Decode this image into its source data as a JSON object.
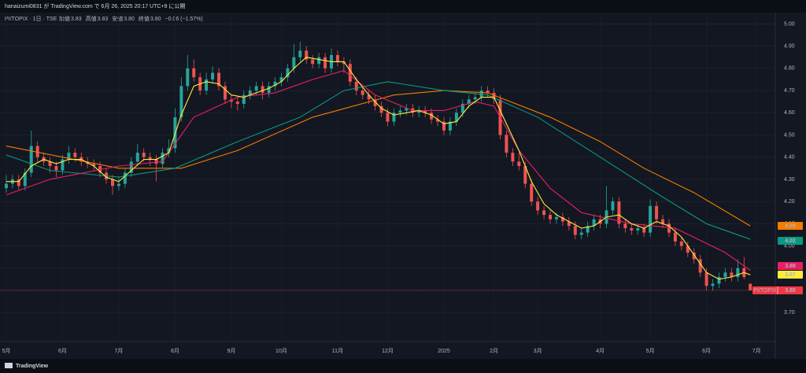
{
  "header": {
    "published": "hanaizumi0831 が TradingView.com で 6月 26, 2025 20:17 UTC+9 に公開"
  },
  "footer": {
    "brand": "TradingView"
  },
  "chart_data": {
    "type": "candlestick",
    "symbol": "PI/TOPIX · 1日 · TSE",
    "ohlc_header": [
      {
        "label": "始値",
        "value": "3.83"
      },
      {
        "label": "高値",
        "value": "3.83"
      },
      {
        "label": "安値",
        "value": "3.80"
      },
      {
        "label": "終値",
        "value": "3.80"
      }
    ],
    "change": "−0.06 (−1.57%)",
    "price_badge": {
      "name": "PI/TOPIX",
      "label": "3.80",
      "value": 3.8,
      "color": "#f23645"
    },
    "up_color": "#26a69a",
    "down_color": "#ef5350",
    "xlim": [
      -1,
      123
    ],
    "xticks": [
      {
        "value": 0,
        "label": "5月"
      },
      {
        "value": 9,
        "label": "6月"
      },
      {
        "value": 18,
        "label": "7月"
      },
      {
        "value": 27,
        "label": "8月"
      },
      {
        "value": 36,
        "label": "9月"
      },
      {
        "value": 44,
        "label": "10月"
      },
      {
        "value": 53,
        "label": "11月"
      },
      {
        "value": 61,
        "label": "12月"
      },
      {
        "value": 70,
        "label": "2025"
      },
      {
        "value": 78,
        "label": "2月"
      },
      {
        "value": 85,
        "label": "3月"
      },
      {
        "value": 95,
        "label": "4月"
      },
      {
        "value": 103,
        "label": "5月"
      },
      {
        "value": 112,
        "label": "6月"
      },
      {
        "value": 120,
        "label": "7月"
      }
    ],
    "ylim": [
      3.58,
      5.03
    ],
    "yticks": [
      {
        "value": 3.7,
        "label": "3.70"
      },
      {
        "value": 3.8,
        "label": "3.80"
      },
      {
        "value": 3.9,
        "label": "3.90"
      },
      {
        "value": 4.0,
        "label": "4.00"
      },
      {
        "value": 4.1,
        "label": "4.10"
      },
      {
        "value": 4.2,
        "label": "4.20"
      },
      {
        "value": 4.3,
        "label": "4.30"
      },
      {
        "value": 4.4,
        "label": "4.40"
      },
      {
        "value": 4.5,
        "label": "4.50"
      },
      {
        "value": 4.6,
        "label": "4.60"
      },
      {
        "value": 4.7,
        "label": "4.70"
      },
      {
        "value": 4.8,
        "label": "4.80"
      },
      {
        "value": 4.9,
        "label": "4.90"
      },
      {
        "value": 5.0,
        "label": "5.00"
      }
    ],
    "grid": true,
    "candles": [
      [
        4.26,
        4.32,
        4.24,
        4.28
      ],
      [
        4.28,
        4.32,
        4.26,
        4.3
      ],
      [
        4.3,
        4.32,
        4.25,
        4.27
      ],
      [
        4.27,
        4.35,
        4.25,
        4.33
      ],
      [
        4.33,
        4.52,
        4.31,
        4.45
      ],
      [
        4.45,
        4.47,
        4.38,
        4.4
      ],
      [
        4.4,
        4.42,
        4.36,
        4.38
      ],
      [
        4.38,
        4.4,
        4.33,
        4.36
      ],
      [
        4.36,
        4.38,
        4.31,
        4.34
      ],
      [
        4.34,
        4.41,
        4.32,
        4.39
      ],
      [
        4.39,
        4.45,
        4.37,
        4.42
      ],
      [
        4.42,
        4.44,
        4.38,
        4.4
      ],
      [
        4.4,
        4.42,
        4.36,
        4.38
      ],
      [
        4.38,
        4.4,
        4.35,
        4.37
      ],
      [
        4.37,
        4.39,
        4.34,
        4.36
      ],
      [
        4.36,
        4.38,
        4.31,
        4.33
      ],
      [
        4.33,
        4.35,
        4.28,
        4.3
      ],
      [
        4.3,
        4.32,
        4.23,
        4.27
      ],
      [
        4.27,
        4.31,
        4.25,
        4.28
      ],
      [
        4.28,
        4.35,
        4.26,
        4.33
      ],
      [
        4.33,
        4.4,
        4.31,
        4.38
      ],
      [
        4.38,
        4.46,
        4.36,
        4.42
      ],
      [
        4.42,
        4.44,
        4.38,
        4.4
      ],
      [
        4.4,
        4.42,
        4.36,
        4.39
      ],
      [
        4.39,
        4.41,
        4.29,
        4.37
      ],
      [
        4.37,
        4.44,
        4.35,
        4.42
      ],
      [
        4.42,
        4.48,
        4.4,
        4.44
      ],
      [
        4.44,
        4.62,
        4.42,
        4.58
      ],
      [
        4.58,
        4.76,
        4.56,
        4.72
      ],
      [
        4.72,
        4.86,
        4.7,
        4.8
      ],
      [
        4.8,
        4.84,
        4.74,
        4.76
      ],
      [
        4.76,
        4.78,
        4.68,
        4.7
      ],
      [
        4.7,
        4.78,
        4.68,
        4.75
      ],
      [
        4.75,
        4.81,
        4.73,
        4.78
      ],
      [
        4.78,
        4.8,
        4.7,
        4.72
      ],
      [
        4.72,
        4.74,
        4.64,
        4.66
      ],
      [
        4.66,
        4.68,
        4.62,
        4.65
      ],
      [
        4.65,
        4.67,
        4.61,
        4.64
      ],
      [
        4.64,
        4.7,
        4.62,
        4.68
      ],
      [
        4.68,
        4.72,
        4.66,
        4.7
      ],
      [
        4.7,
        4.74,
        4.68,
        4.72
      ],
      [
        4.72,
        4.74,
        4.66,
        4.69
      ],
      [
        4.69,
        4.74,
        4.67,
        4.72
      ],
      [
        4.72,
        4.76,
        4.7,
        4.74
      ],
      [
        4.74,
        4.78,
        4.72,
        4.76
      ],
      [
        4.76,
        4.82,
        4.74,
        4.8
      ],
      [
        4.8,
        4.91,
        4.78,
        4.85
      ],
      [
        4.85,
        4.92,
        4.83,
        4.88
      ],
      [
        4.88,
        4.9,
        4.82,
        4.84
      ],
      [
        4.84,
        4.86,
        4.8,
        4.82
      ],
      [
        4.82,
        4.87,
        4.8,
        4.85
      ],
      [
        4.85,
        4.87,
        4.78,
        4.8
      ],
      [
        4.8,
        4.89,
        4.78,
        4.86
      ],
      [
        4.86,
        4.88,
        4.81,
        4.83
      ],
      [
        4.83,
        4.85,
        4.78,
        4.82
      ],
      [
        4.82,
        4.84,
        4.72,
        4.74
      ],
      [
        4.74,
        4.76,
        4.68,
        4.7
      ],
      [
        4.7,
        4.72,
        4.66,
        4.68
      ],
      [
        4.68,
        4.7,
        4.64,
        4.66
      ],
      [
        4.66,
        4.68,
        4.61,
        4.63
      ],
      [
        4.63,
        4.65,
        4.58,
        4.6
      ],
      [
        4.6,
        4.62,
        4.54,
        4.56
      ],
      [
        4.56,
        4.62,
        4.54,
        4.6
      ],
      [
        4.6,
        4.63,
        4.58,
        4.61
      ],
      [
        4.61,
        4.64,
        4.59,
        4.62
      ],
      [
        4.62,
        4.64,
        4.58,
        4.6
      ],
      [
        4.6,
        4.63,
        4.58,
        4.61
      ],
      [
        4.61,
        4.63,
        4.58,
        4.6
      ],
      [
        4.6,
        4.62,
        4.55,
        4.57
      ],
      [
        4.57,
        4.59,
        4.54,
        4.56
      ],
      [
        4.56,
        4.58,
        4.5,
        4.52
      ],
      [
        4.52,
        4.58,
        4.5,
        4.56
      ],
      [
        4.56,
        4.62,
        4.54,
        4.6
      ],
      [
        4.6,
        4.66,
        4.58,
        4.64
      ],
      [
        4.64,
        4.68,
        4.62,
        4.66
      ],
      [
        4.66,
        4.69,
        4.64,
        4.67
      ],
      [
        4.67,
        4.72,
        4.65,
        4.7
      ],
      [
        4.7,
        4.72,
        4.67,
        4.69
      ],
      [
        4.69,
        4.71,
        4.64,
        4.66
      ],
      [
        4.66,
        4.68,
        4.48,
        4.5
      ],
      [
        4.5,
        4.52,
        4.4,
        4.42
      ],
      [
        4.42,
        4.44,
        4.36,
        4.38
      ],
      [
        4.38,
        4.42,
        4.34,
        4.36
      ],
      [
        4.36,
        4.38,
        4.26,
        4.28
      ],
      [
        4.28,
        4.3,
        4.18,
        4.2
      ],
      [
        4.2,
        4.22,
        4.14,
        4.16
      ],
      [
        4.16,
        4.18,
        4.12,
        4.14
      ],
      [
        4.14,
        4.16,
        4.1,
        4.12
      ],
      [
        4.12,
        4.15,
        4.1,
        4.13
      ],
      [
        4.13,
        4.15,
        4.09,
        4.11
      ],
      [
        4.11,
        4.13,
        4.07,
        4.09
      ],
      [
        4.09,
        4.11,
        4.03,
        4.05
      ],
      [
        4.05,
        4.08,
        4.03,
        4.06
      ],
      [
        4.06,
        4.11,
        4.04,
        4.09
      ],
      [
        4.09,
        4.14,
        4.07,
        4.12
      ],
      [
        4.12,
        4.14,
        4.08,
        4.1
      ],
      [
        4.1,
        4.27,
        4.08,
        4.16
      ],
      [
        4.16,
        4.22,
        4.14,
        4.2
      ],
      [
        4.2,
        4.22,
        4.08,
        4.1
      ],
      [
        4.1,
        4.12,
        4.06,
        4.08
      ],
      [
        4.08,
        4.1,
        4.05,
        4.07
      ],
      [
        4.07,
        4.1,
        4.05,
        4.08
      ],
      [
        4.08,
        4.1,
        4.04,
        4.06
      ],
      [
        4.06,
        4.21,
        4.04,
        4.18
      ],
      [
        4.18,
        4.2,
        4.1,
        4.12
      ],
      [
        4.12,
        4.14,
        4.08,
        4.1
      ],
      [
        4.1,
        4.12,
        4.04,
        4.06
      ],
      [
        4.06,
        4.08,
        4.0,
        4.02
      ],
      [
        4.02,
        4.04,
        3.98,
        4.0
      ],
      [
        4.0,
        4.02,
        3.95,
        3.97
      ],
      [
        3.97,
        3.99,
        3.92,
        3.94
      ],
      [
        3.94,
        3.96,
        3.86,
        3.88
      ],
      [
        3.88,
        3.9,
        3.8,
        3.82
      ],
      [
        3.82,
        3.85,
        3.8,
        3.83
      ],
      [
        3.83,
        3.88,
        3.81,
        3.86
      ],
      [
        3.86,
        3.9,
        3.84,
        3.88
      ],
      [
        3.88,
        3.9,
        3.84,
        3.86
      ],
      [
        3.86,
        3.94,
        3.84,
        3.9
      ],
      [
        3.9,
        3.95,
        3.85,
        3.86
      ],
      [
        3.83,
        3.83,
        3.8,
        3.8
      ]
    ],
    "series": [
      {
        "color": "#f57c00",
        "last_label": "4.09",
        "x": [
          0,
          18,
          28,
          37,
          49,
          62,
          70,
          77,
          87,
          95,
          102,
          110,
          119
        ],
        "values": [
          4.45,
          4.35,
          4.35,
          4.43,
          4.58,
          4.68,
          4.7,
          4.69,
          4.58,
          4.47,
          4.35,
          4.24,
          4.09
        ]
      },
      {
        "color": "#089981",
        "last_label": "4.02",
        "x": [
          0,
          7,
          18,
          27,
          37,
          47,
          54,
          61,
          70,
          77,
          85,
          95,
          105,
          112,
          119
        ],
        "values": [
          4.41,
          4.34,
          4.31,
          4.35,
          4.47,
          4.58,
          4.7,
          4.74,
          4.7,
          4.68,
          4.58,
          4.4,
          4.22,
          4.1,
          4.03
        ]
      },
      {
        "color": "#e91e63",
        "last_label": "3.88",
        "x": [
          0,
          7,
          18,
          25,
          30,
          37,
          43,
          49,
          54,
          59,
          65,
          70,
          75,
          78,
          82,
          87,
          92,
          100,
          107,
          115,
          119
        ],
        "values": [
          4.23,
          4.3,
          4.36,
          4.38,
          4.58,
          4.67,
          4.69,
          4.75,
          4.79,
          4.68,
          4.61,
          4.61,
          4.65,
          4.63,
          4.43,
          4.26,
          4.15,
          4.1,
          4.08,
          3.97,
          3.89
        ]
      },
      {
        "color": "#ffeb3b",
        "last_label": "3.87",
        "x": [
          0,
          2,
          4,
          6,
          8,
          10,
          12,
          14,
          16,
          18,
          20,
          22,
          24,
          26,
          28,
          30,
          32,
          34,
          36,
          38,
          40,
          42,
          44,
          46,
          48,
          50,
          52,
          54,
          56,
          58,
          60,
          62,
          64,
          66,
          68,
          70,
          72,
          74,
          76,
          78,
          80,
          82,
          84,
          86,
          88,
          90,
          92,
          94,
          96,
          98,
          100,
          102,
          104,
          106,
          108,
          110,
          112,
          114,
          116,
          118,
          119
        ],
        "values": [
          4.29,
          4.29,
          4.36,
          4.39,
          4.37,
          4.39,
          4.39,
          4.36,
          4.31,
          4.29,
          4.34,
          4.39,
          4.39,
          4.42,
          4.59,
          4.72,
          4.74,
          4.73,
          4.68,
          4.67,
          4.69,
          4.71,
          4.74,
          4.8,
          4.85,
          4.84,
          4.83,
          4.83,
          4.75,
          4.68,
          4.62,
          4.59,
          4.6,
          4.61,
          4.59,
          4.55,
          4.56,
          4.63,
          4.67,
          4.67,
          4.55,
          4.43,
          4.29,
          4.19,
          4.14,
          4.11,
          4.08,
          4.09,
          4.13,
          4.14,
          4.1,
          4.08,
          4.11,
          4.09,
          4.04,
          3.96,
          3.88,
          3.85,
          3.86,
          3.88,
          3.87
        ]
      }
    ]
  }
}
